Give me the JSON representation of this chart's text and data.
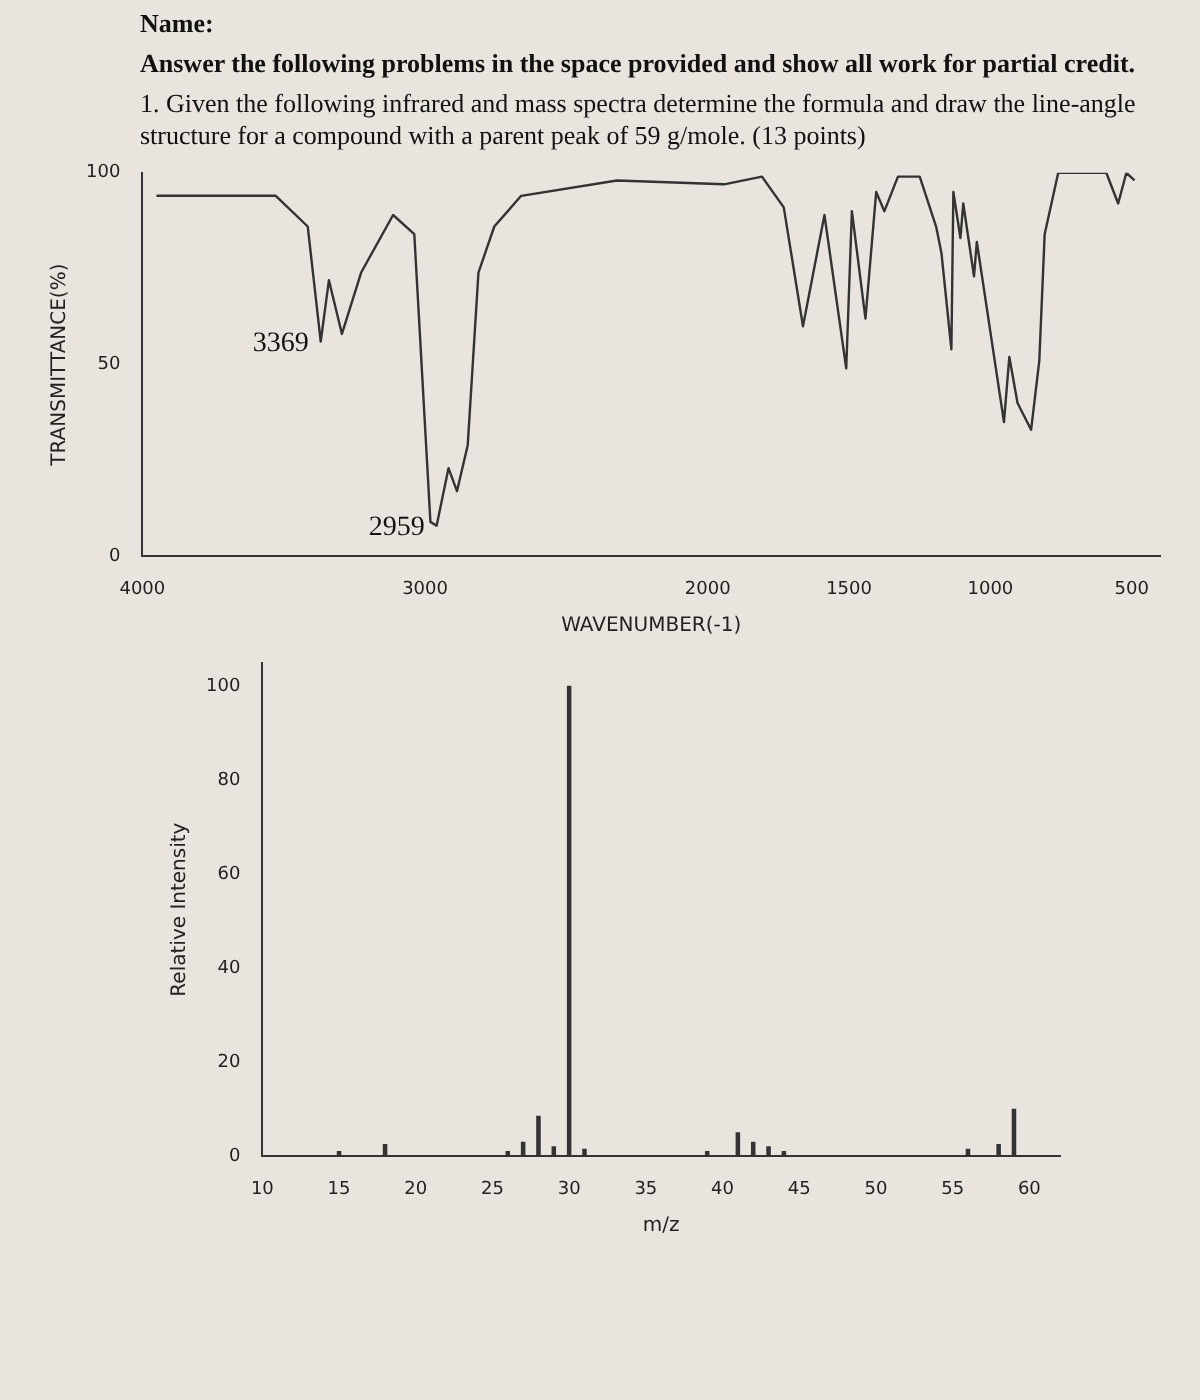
{
  "chart_data": [
    {
      "type": "line",
      "annotations": [
        "Name:",
        "Answer the following problems in the space provided and show all work for partial credit.",
        "1. Given the following infrared and mass spectra determine the formula and draw the line-angle structure for a compound with a parent peak of 59 g/mole. (13 points)",
        {
          "text": "3369",
          "x": 3369,
          "y": 56
        },
        {
          "text": "2959",
          "x": 2959,
          "y": 8
        }
      ],
      "xlabel": "WAVENUMBER(-1)",
      "ylabel": "TRANSMITTANCE(%)",
      "x": [
        3950,
        3528,
        3415,
        3369,
        3340,
        3294,
        3226,
        3113,
        3038,
        2981,
        2959,
        2917,
        2887,
        2849,
        2811,
        2755,
        2660,
        2321,
        1942,
        1808,
        1731,
        1663,
        1587,
        1510,
        1490,
        1442,
        1404,
        1375,
        1327,
        1250,
        1192,
        1173,
        1138,
        1131,
        1106,
        1096,
        1058,
        1048,
        952,
        933,
        904,
        856,
        827,
        808,
        760,
        590,
        548,
        519,
        490
      ],
      "values": [
        94,
        94,
        86,
        56,
        72,
        58,
        74,
        89,
        84,
        9,
        8,
        23,
        17,
        29,
        74,
        86,
        94,
        98,
        97,
        99,
        91,
        60,
        89,
        49,
        90,
        62,
        95,
        90,
        99,
        99,
        86,
        79,
        54,
        95,
        83,
        92,
        73,
        82,
        35,
        52,
        40,
        33,
        51,
        84,
        100,
        100,
        92,
        100,
        98
      ],
      "color": "#333333",
      "xlim": [
        4000,
        400
      ],
      "xticks": [
        4000,
        3000,
        2000,
        1500,
        1000,
        500
      ],
      "ylim": [
        0,
        100
      ],
      "yticks": [
        0,
        50,
        100
      ],
      "grid": false,
      "legend": false,
      "marker": "none",
      "line_style": "solid"
    },
    {
      "type": "bar",
      "xlabel": "m/z",
      "ylabel": "Relative Intensity",
      "x": [
        15,
        18,
        26,
        27,
        28,
        29,
        30,
        31,
        39,
        41,
        42,
        43,
        44,
        56,
        58,
        59
      ],
      "values": [
        1,
        2.5,
        1,
        3,
        8.5,
        2,
        100,
        1.5,
        1,
        5,
        3,
        2,
        1,
        1.5,
        2.5,
        10
      ],
      "color": "#333333",
      "xlim": [
        10,
        62
      ],
      "xticks": [
        10,
        15,
        20,
        25,
        30,
        35,
        40,
        45,
        50,
        55,
        60
      ],
      "ylim": [
        0,
        105
      ],
      "yticks": [
        0,
        20,
        40,
        60,
        80,
        100
      ],
      "grid": false,
      "legend": false
    }
  ]
}
